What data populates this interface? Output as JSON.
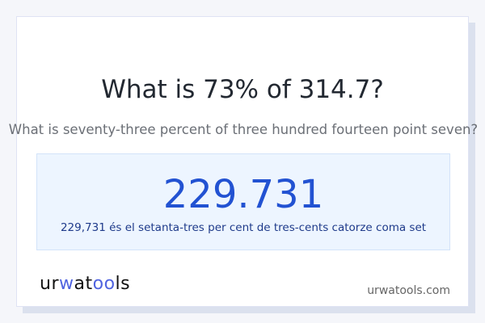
{
  "question": {
    "title": "What is 73% of 314.7?",
    "subtitle": "What is seventy-three percent of three hundred fourteen point seven?"
  },
  "result": {
    "value": "229.731",
    "words": "229,731 és el setanta-tres per cent de tres-cents catorze coma set"
  },
  "footer": {
    "logo_text": "urwatools",
    "site": "urwatools.com"
  },
  "colors": {
    "accent": "#2252d2",
    "logo_accent": "#4f63e0",
    "result_bg": "#edf5ff"
  }
}
